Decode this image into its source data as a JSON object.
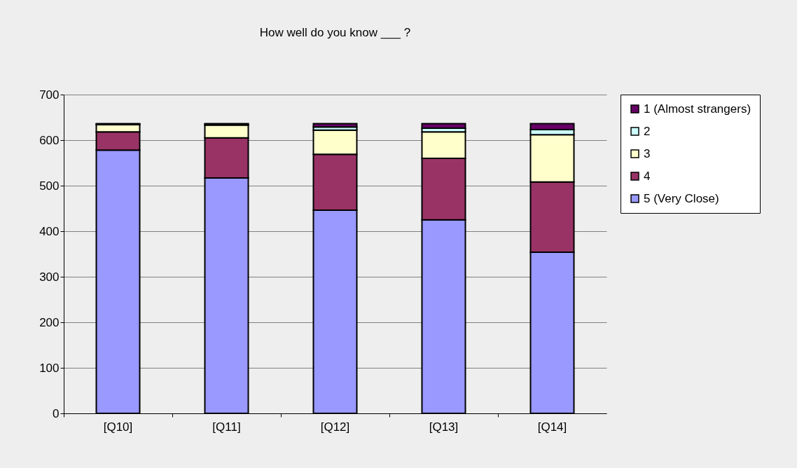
{
  "chart_data": {
    "type": "bar",
    "title": "How well do you know ___ ?",
    "categories": [
      "[Q10]",
      "[Q11]",
      "[Q12]",
      "[Q13]",
      "[Q14]"
    ],
    "stacked": true,
    "ylim": [
      0,
      700
    ],
    "yticks": [
      0,
      100,
      200,
      300,
      400,
      500,
      600,
      700
    ],
    "grid": "y",
    "legend": "right",
    "series": [
      {
        "name": "5 (Very Close)",
        "color": "#9999ff",
        "values": [
          578,
          517,
          446,
          425,
          354
        ]
      },
      {
        "name": "4",
        "color": "#993366",
        "values": [
          40,
          88,
          123,
          135,
          154
        ]
      },
      {
        "name": "3",
        "color": "#ffffcc",
        "values": [
          16,
          28,
          53,
          58,
          104
        ]
      },
      {
        "name": "2",
        "color": "#ccffff",
        "values": [
          1,
          2,
          7,
          8,
          11
        ]
      },
      {
        "name": "1 (Almost strangers)",
        "color": "#660066",
        "values": [
          1,
          1,
          7,
          10,
          13
        ]
      }
    ]
  }
}
